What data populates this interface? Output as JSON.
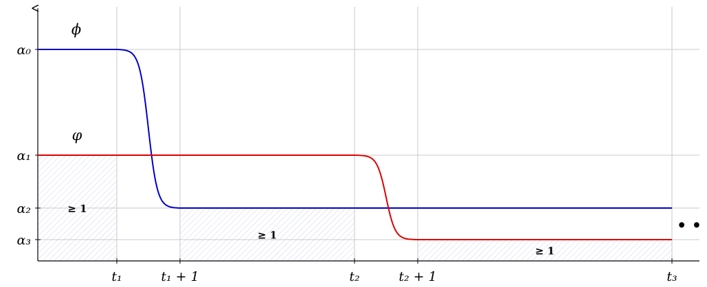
{
  "chart_data": {
    "type": "line",
    "title": "",
    "xlabel": "",
    "ylabel": "",
    "grid": true,
    "x_ticks": [
      {
        "label": "t₁",
        "x": 1
      },
      {
        "label": "t₁ + 1",
        "x": 2
      },
      {
        "label": "t₂",
        "x": 4
      },
      {
        "label": "t₂ + 1",
        "x": 5
      },
      {
        "label": "t₃",
        "x": 9
      }
    ],
    "y_ticks": [
      {
        "label": "α₀",
        "y": 3
      },
      {
        "label": "α₁",
        "y": 2
      },
      {
        "label": "α₂",
        "y": 1
      },
      {
        "label": "α₃",
        "y": 0.7
      }
    ],
    "xlim": [
      0,
      10
    ],
    "ylim": [
      0,
      3.6
    ],
    "series": [
      {
        "name": "ϕ",
        "color": "#0000cc",
        "levels": [
          {
            "from": 0,
            "to": 1,
            "y": 3
          },
          {
            "from": 2,
            "to": 9,
            "y": 1
          }
        ],
        "transitions": [
          {
            "from": 1,
            "to": 2,
            "y_from": 3,
            "y_to": 1
          }
        ]
      },
      {
        "name": "φ",
        "color": "#dd0000",
        "levels": [
          {
            "from": 0,
            "to": 4,
            "y": 2
          },
          {
            "from": 5,
            "to": 9,
            "y": 0.7
          }
        ],
        "transitions": [
          {
            "from": 4,
            "to": 5,
            "y_from": 2,
            "y_to": 0.7
          }
        ]
      }
    ],
    "regions": [
      {
        "label": "≥ 1",
        "x_from": 0,
        "x_to": 1,
        "y_top": 2
      },
      {
        "label": "≥ 1",
        "x_from": 2,
        "x_to": 4,
        "y_top": 1
      },
      {
        "label": "≥ 1",
        "x_from": 5,
        "x_to": 9,
        "y_top": 0.7
      }
    ],
    "continuation": "• •",
    "hatch_color": "#cfd2f0"
  }
}
